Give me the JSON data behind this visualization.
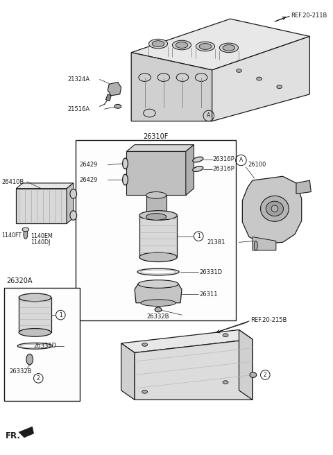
{
  "bg_color": "#ffffff",
  "line_color": "#1a1a1a",
  "gray1": "#e8e8e8",
  "gray2": "#d0d0d0",
  "gray3": "#b0b0b0",
  "gray4": "#888888",
  "fig_width": 4.8,
  "fig_height": 6.56,
  "dpi": 100,
  "labels": {
    "ref_20_211b": "REF.20-211B",
    "ref_20_215b": "REF.20-215B",
    "part_21324a": "21324A",
    "part_21516a": "21516A",
    "part_26310f": "26310F",
    "part_26429_top": "26429",
    "part_26429_bot": "26429",
    "part_26316p_top": "26316P",
    "part_26316p_bot": "26316P",
    "part_26410b": "26410B",
    "part_1140ft": "1140FT",
    "part_1140em": "1140EM",
    "part_1140dj": "1140DJ",
    "part_26331d_main": "26331D",
    "part_26311": "26311",
    "part_26332b_main": "26332B",
    "part_26320a": "26320A",
    "part_26331d_sub": "26331D",
    "part_26332b_sub": "26332B",
    "part_26100": "26100",
    "part_21381": "21381",
    "fr_label": "FR."
  }
}
